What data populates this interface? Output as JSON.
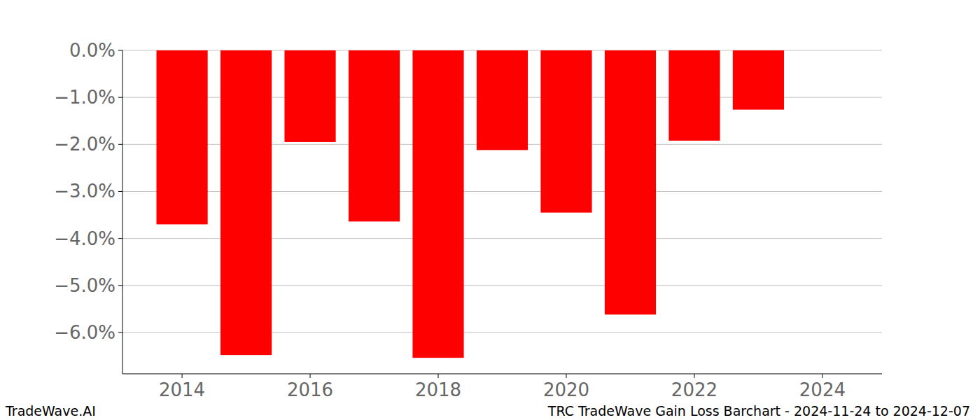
{
  "chart_data": {
    "type": "bar",
    "title": "TRC TradeWave Gain Loss Barchart - 2024-11-24 to 2024-12-07",
    "annotations": [
      "TradeWave.AI"
    ],
    "x": [
      2014,
      2015,
      2016,
      2017,
      2018,
      2019,
      2020,
      2021,
      2022,
      2023
    ],
    "values": [
      -3.7,
      -6.48,
      -1.95,
      -3.64,
      -6.54,
      -2.12,
      -3.45,
      -5.62,
      -1.92,
      -1.26
    ],
    "color": "#ff0000",
    "xlim": [
      2013.07,
      2024.93
    ],
    "xticks": [
      2014,
      2016,
      2018,
      2020,
      2022,
      2024
    ],
    "ylim": [
      -6.88,
      0
    ],
    "yticks": [
      {
        "value": 0,
        "label": "0.0%"
      },
      {
        "value": -1,
        "label": "−1.0%"
      },
      {
        "value": -2,
        "label": "−2.0%"
      },
      {
        "value": -3,
        "label": "−3.0%"
      },
      {
        "value": -4,
        "label": "−4.0%"
      },
      {
        "value": -5,
        "label": "−5.0%"
      },
      {
        "value": -6,
        "label": "−6.0%"
      }
    ],
    "grid": true
  }
}
